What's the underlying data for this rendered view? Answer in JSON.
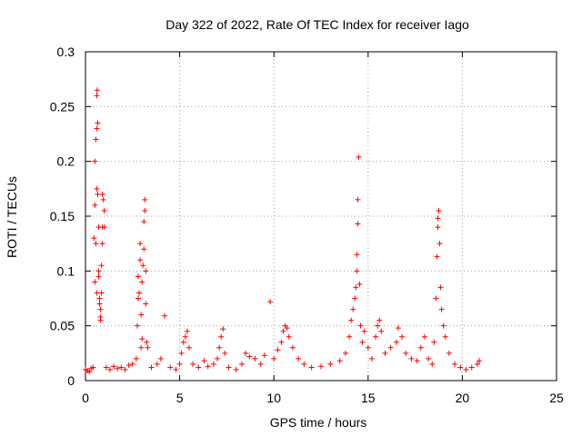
{
  "chart_data": {
    "type": "scatter",
    "title": "Day 322 of 2022, Rate Of TEC Index for receiver Iago",
    "xlabel": "GPS time / hours",
    "ylabel": "ROTI / TECUs",
    "xlim": [
      0,
      25
    ],
    "ylim": [
      0,
      0.3
    ],
    "xticks": [
      0,
      5,
      10,
      15,
      20,
      25
    ],
    "xtick_labels": [
      "0",
      "5",
      "10",
      "15",
      "20",
      "25"
    ],
    "yticks": [
      0,
      0.05,
      0.1,
      0.15,
      0.2,
      0.25,
      0.3
    ],
    "ytick_labels": [
      "0",
      "0.05",
      "0.1",
      "0.15",
      "0.2",
      "0.25",
      "0.3"
    ],
    "grid": true,
    "legend": "none",
    "marker": "+",
    "color": "#ff0000",
    "series": [
      {
        "points": [
          [
            0.0,
            0.01
          ],
          [
            0.1,
            0.009
          ],
          [
            0.2,
            0.008
          ],
          [
            0.3,
            0.011
          ],
          [
            0.4,
            0.012
          ],
          [
            0.45,
            0.13
          ],
          [
            0.5,
            0.16
          ],
          [
            0.5,
            0.2
          ],
          [
            0.55,
            0.22
          ],
          [
            0.6,
            0.23
          ],
          [
            0.6,
            0.26
          ],
          [
            0.62,
            0.265
          ],
          [
            0.65,
            0.235
          ],
          [
            0.6,
            0.175
          ],
          [
            0.65,
            0.17
          ],
          [
            0.7,
            0.14
          ],
          [
            0.7,
            0.1
          ],
          [
            0.7,
            0.095
          ],
          [
            0.75,
            0.075
          ],
          [
            0.75,
            0.07
          ],
          [
            0.8,
            0.065
          ],
          [
            0.8,
            0.058
          ],
          [
            0.8,
            0.055
          ],
          [
            0.85,
            0.08
          ],
          [
            0.85,
            0.105
          ],
          [
            0.9,
            0.125
          ],
          [
            0.9,
            0.14
          ],
          [
            0.9,
            0.17
          ],
          [
            0.95,
            0.165
          ],
          [
            1.0,
            0.155
          ],
          [
            1.0,
            0.14
          ],
          [
            0.55,
            0.125
          ],
          [
            0.5,
            0.09
          ],
          [
            0.6,
            0.08
          ],
          [
            1.1,
            0.012
          ],
          [
            1.3,
            0.01
          ],
          [
            1.5,
            0.013
          ],
          [
            1.7,
            0.011
          ],
          [
            1.9,
            0.012
          ],
          [
            2.1,
            0.01
          ],
          [
            2.3,
            0.014
          ],
          [
            2.5,
            0.015
          ],
          [
            2.7,
            0.02
          ],
          [
            2.75,
            0.05
          ],
          [
            2.8,
            0.075
          ],
          [
            2.8,
            0.095
          ],
          [
            2.85,
            0.08
          ],
          [
            2.9,
            0.125
          ],
          [
            2.9,
            0.11
          ],
          [
            2.95,
            0.06
          ],
          [
            3.0,
            0.09
          ],
          [
            3.05,
            0.105
          ],
          [
            3.1,
            0.12
          ],
          [
            3.1,
            0.145
          ],
          [
            3.15,
            0.155
          ],
          [
            3.15,
            0.165
          ],
          [
            3.2,
            0.1
          ],
          [
            3.2,
            0.07
          ],
          [
            3.25,
            0.035
          ],
          [
            3.3,
            0.03
          ],
          [
            3.0,
            0.038
          ],
          [
            2.95,
            0.03
          ],
          [
            3.5,
            0.012
          ],
          [
            3.8,
            0.015
          ],
          [
            4.0,
            0.02
          ],
          [
            4.2,
            0.059
          ],
          [
            4.5,
            0.012
          ],
          [
            4.8,
            0.01
          ],
          [
            5.0,
            0.015
          ],
          [
            5.1,
            0.025
          ],
          [
            5.2,
            0.035
          ],
          [
            5.3,
            0.04
          ],
          [
            5.4,
            0.045
          ],
          [
            5.5,
            0.03
          ],
          [
            5.7,
            0.015
          ],
          [
            6.0,
            0.012
          ],
          [
            6.3,
            0.018
          ],
          [
            6.5,
            0.013
          ],
          [
            6.8,
            0.015
          ],
          [
            7.0,
            0.02
          ],
          [
            7.1,
            0.03
          ],
          [
            7.2,
            0.04
          ],
          [
            7.3,
            0.047
          ],
          [
            7.4,
            0.025
          ],
          [
            7.6,
            0.012
          ],
          [
            8.0,
            0.01
          ],
          [
            8.3,
            0.015
          ],
          [
            8.5,
            0.025
          ],
          [
            8.7,
            0.022
          ],
          [
            9.0,
            0.02
          ],
          [
            9.3,
            0.015
          ],
          [
            9.5,
            0.023
          ],
          [
            9.8,
            0.072
          ],
          [
            10.0,
            0.02
          ],
          [
            10.2,
            0.028
          ],
          [
            10.4,
            0.035
          ],
          [
            10.5,
            0.045
          ],
          [
            10.6,
            0.05
          ],
          [
            10.7,
            0.048
          ],
          [
            10.8,
            0.04
          ],
          [
            11.0,
            0.03
          ],
          [
            11.3,
            0.02
          ],
          [
            11.6,
            0.015
          ],
          [
            12.0,
            0.012
          ],
          [
            12.5,
            0.013
          ],
          [
            13.0,
            0.015
          ],
          [
            13.5,
            0.018
          ],
          [
            13.8,
            0.025
          ],
          [
            14.0,
            0.04
          ],
          [
            14.1,
            0.055
          ],
          [
            14.2,
            0.065
          ],
          [
            14.3,
            0.075
          ],
          [
            14.35,
            0.085
          ],
          [
            14.4,
            0.1
          ],
          [
            14.4,
            0.115
          ],
          [
            14.45,
            0.143
          ],
          [
            14.45,
            0.165
          ],
          [
            14.5,
            0.204
          ],
          [
            14.55,
            0.088
          ],
          [
            14.6,
            0.05
          ],
          [
            14.7,
            0.035
          ],
          [
            14.8,
            0.045
          ],
          [
            15.0,
            0.03
          ],
          [
            15.2,
            0.02
          ],
          [
            15.4,
            0.04
          ],
          [
            15.5,
            0.05
          ],
          [
            15.6,
            0.055
          ],
          [
            15.7,
            0.045
          ],
          [
            15.9,
            0.025
          ],
          [
            16.2,
            0.03
          ],
          [
            16.5,
            0.035
          ],
          [
            16.6,
            0.048
          ],
          [
            16.8,
            0.04
          ],
          [
            17.0,
            0.025
          ],
          [
            17.3,
            0.02
          ],
          [
            17.6,
            0.018
          ],
          [
            17.8,
            0.03
          ],
          [
            18.0,
            0.04
          ],
          [
            18.2,
            0.02
          ],
          [
            18.4,
            0.015
          ],
          [
            18.5,
            0.035
          ],
          [
            18.6,
            0.075
          ],
          [
            18.65,
            0.113
          ],
          [
            18.7,
            0.14
          ],
          [
            18.7,
            0.148
          ],
          [
            18.75,
            0.155
          ],
          [
            18.8,
            0.125
          ],
          [
            18.85,
            0.085
          ],
          [
            18.9,
            0.065
          ],
          [
            19.0,
            0.05
          ],
          [
            19.1,
            0.04
          ],
          [
            19.3,
            0.025
          ],
          [
            19.6,
            0.015
          ],
          [
            19.9,
            0.012
          ],
          [
            20.2,
            0.01
          ],
          [
            20.5,
            0.012
          ],
          [
            20.8,
            0.015
          ],
          [
            20.9,
            0.018
          ]
        ]
      }
    ]
  }
}
